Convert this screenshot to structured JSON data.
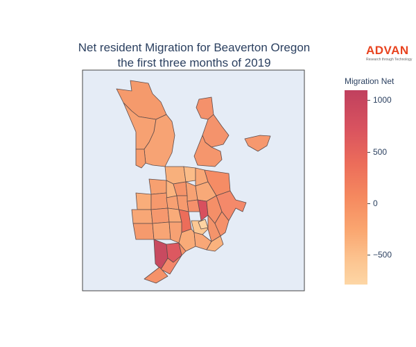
{
  "title_line1": "Net resident Migration for Beaverton Oregon",
  "title_line2": "the first three months of 2019",
  "logo": {
    "word": "ADVAN",
    "tagline": "Research through Technology",
    "color": "#e8431f"
  },
  "colorbar": {
    "title": "Migration Net",
    "min": -800,
    "max": 1100,
    "ticks": [
      {
        "value": 1000,
        "label": "1000"
      },
      {
        "value": 500,
        "label": "500"
      },
      {
        "value": 0,
        "label": "0"
      },
      {
        "value": -500,
        "label": "−500"
      }
    ],
    "colorscale": [
      "#fdd6a5",
      "#fcc591",
      "#faa670",
      "#f5895f",
      "#ec6d5a",
      "#d9535f",
      "#c0405e"
    ]
  },
  "map": {
    "background": "#e5ecf6",
    "frame_color": "#444444",
    "border_color": "#5a4a4a"
  }
}
